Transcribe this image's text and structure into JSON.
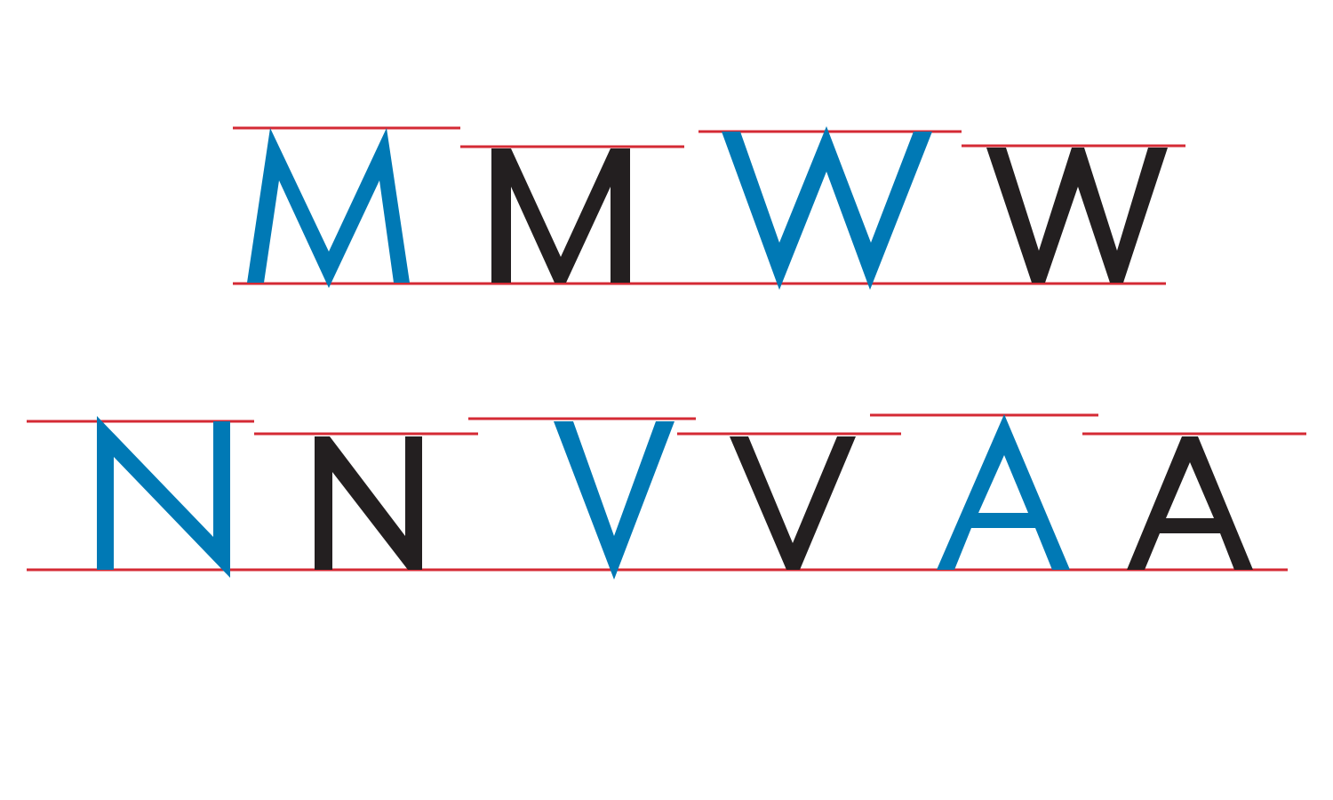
{
  "colors": {
    "background": "#ffffff",
    "guide_line": "#d42a34",
    "overshoot_glyph": "#0079b5",
    "flat_glyph": "#231f20"
  },
  "rows": [
    {
      "glyphs": [
        {
          "letter": "M",
          "variant": "overshoot",
          "color_key": "overshoot_glyph"
        },
        {
          "letter": "M",
          "variant": "flat",
          "color_key": "flat_glyph"
        },
        {
          "letter": "W",
          "variant": "overshoot",
          "color_key": "overshoot_glyph"
        },
        {
          "letter": "W",
          "variant": "flat",
          "color_key": "flat_glyph"
        }
      ]
    },
    {
      "glyphs": [
        {
          "letter": "N",
          "variant": "overshoot",
          "color_key": "overshoot_glyph"
        },
        {
          "letter": "N",
          "variant": "flat",
          "color_key": "flat_glyph"
        },
        {
          "letter": "V",
          "variant": "overshoot",
          "color_key": "overshoot_glyph"
        },
        {
          "letter": "V",
          "variant": "flat",
          "color_key": "flat_glyph"
        },
        {
          "letter": "A",
          "variant": "overshoot",
          "color_key": "overshoot_glyph"
        },
        {
          "letter": "A",
          "variant": "flat",
          "color_key": "flat_glyph"
        }
      ]
    }
  ]
}
